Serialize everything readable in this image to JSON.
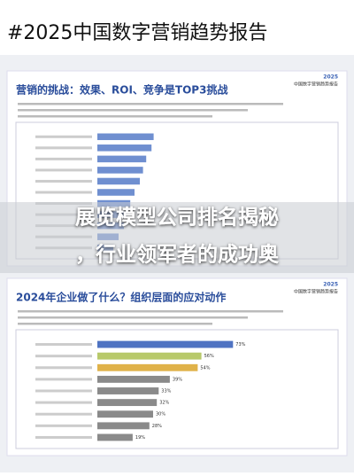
{
  "header": {
    "title": "#2025中国数字营销趋势报告"
  },
  "overlay": {
    "lines": [
      "展览模型公司排名揭秘",
      "，行业领军者的成功奥"
    ]
  },
  "pages": [
    {
      "year": "2025",
      "brand": "中国数字营销趋势报告",
      "title": "营销的挑战：效果、ROI、竞争是TOP3挑战",
      "chart": {
        "type": "bar",
        "xlim": [
          0,
          100
        ],
        "color": "#6f8fd0",
        "values": [
          53,
          51,
          46,
          43,
          40,
          35,
          31,
          28,
          25,
          20,
          15
        ]
      }
    },
    {
      "year": "2025",
      "brand": "中国数字营销趋势报告",
      "title": "2024年企业做了什么？组织层面的应对动作",
      "chart": {
        "type": "bar",
        "xlim": [
          0,
          100
        ],
        "colors": [
          "#4f73c2",
          "#b8c96a",
          "#e0b24a",
          "#8a8a8a",
          "#8a8a8a",
          "#8a8a8a",
          "#8a8a8a",
          "#8a8a8a",
          "#8a8a8a"
        ],
        "values": [
          73,
          56,
          54,
          39,
          33,
          32,
          30,
          28,
          19
        ],
        "value_labels": [
          "73%",
          "56%",
          "54%",
          "39%",
          "33%",
          "32%",
          "30%",
          "28%",
          "19%"
        ]
      }
    }
  ]
}
